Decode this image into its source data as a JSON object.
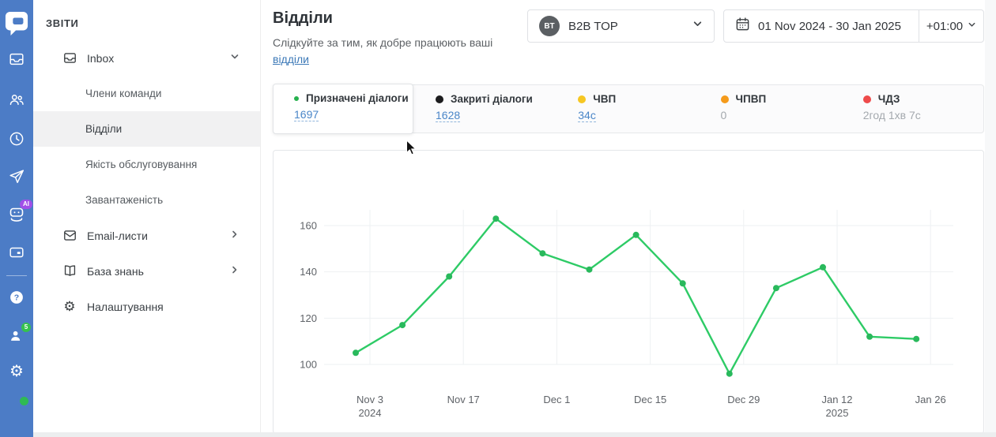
{
  "rail": {
    "logo": "chat-logo",
    "ai_badge": "AI",
    "teammates_badge": "5"
  },
  "sidebar": {
    "section_title": "ЗВІТИ",
    "items": [
      {
        "label": "Inbox"
      },
      {
        "label": "Члени команди"
      },
      {
        "label": "Відділи"
      },
      {
        "label": "Якість обслуговування"
      },
      {
        "label": "Завантаженість"
      },
      {
        "label": "Email-листи"
      },
      {
        "label": "База знань"
      },
      {
        "label": "Налаштування"
      }
    ]
  },
  "header": {
    "title": "Відділи",
    "subtitle": "Слідкуйте за тим, як добре працюють ваші",
    "subtitle_link": "відділи",
    "team_selector": {
      "avatar_initials": "BT",
      "label": "B2B TOP"
    },
    "date_range": "01 Nov 2024 - 30 Jan 2025",
    "timezone": "+01:00"
  },
  "metrics": [
    {
      "label": "Призначені діалоги",
      "value": "1697",
      "color": "#27b14e"
    },
    {
      "label": "Закриті діалоги",
      "value": "1628",
      "color": "#1c1c1e"
    },
    {
      "label": "ЧВП",
      "value": "34с",
      "color": "#f6c723"
    },
    {
      "label": "ЧПВП",
      "value": "0",
      "color": "#f59b1b"
    },
    {
      "label": "ЧДЗ",
      "value": "2год 1хв 7с",
      "color": "#ee4b4b"
    }
  ],
  "chart_data": {
    "type": "line",
    "x": [
      "Nov 3",
      "Nov 10",
      "Nov 17",
      "Nov 24",
      "Dec 1",
      "Dec 8",
      "Dec 15",
      "Dec 22",
      "Dec 29",
      "Jan 5",
      "Jan 12",
      "Jan 19",
      "Jan 26"
    ],
    "series": [
      {
        "name": "Призначені діалоги",
        "color": "#2ecb66",
        "marker_color": "#29b95c",
        "values": [
          105,
          117,
          138,
          163,
          148,
          141,
          156,
          135,
          96,
          133,
          142,
          112,
          111
        ]
      }
    ],
    "x_tick_indices": [
      0,
      2,
      4,
      6,
      8,
      10,
      12
    ],
    "x_tick_labels": [
      [
        "Nov 3",
        "2024"
      ],
      [
        "Nov 17"
      ],
      [
        "Dec 1"
      ],
      [
        "Dec 15"
      ],
      [
        "Dec 29"
      ],
      [
        "Jan 12",
        "2025"
      ],
      [
        "Jan 26"
      ]
    ],
    "y_ticks": [
      100,
      120,
      140,
      160
    ],
    "ylim": [
      88,
      172
    ],
    "grid": true,
    "legend_position": "none"
  }
}
